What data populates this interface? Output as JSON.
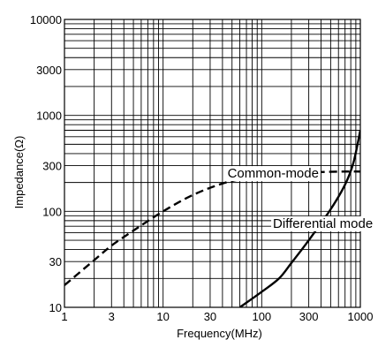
{
  "chart_data": {
    "type": "line",
    "xlabel": "Frequency(MHz)",
    "ylabel": "Impedance(Ω)",
    "xscale": "log",
    "yscale": "log",
    "xlim": [
      1,
      1000
    ],
    "ylim": [
      10,
      10000
    ],
    "grid": true,
    "x_ticks": [
      {
        "v": 1,
        "label": "1"
      },
      {
        "v": 3,
        "label": "3"
      },
      {
        "v": 10,
        "label": "10"
      },
      {
        "v": 30,
        "label": "30"
      },
      {
        "v": 100,
        "label": "100"
      },
      {
        "v": 300,
        "label": "300"
      },
      {
        "v": 1000,
        "label": "1000"
      }
    ],
    "y_ticks": [
      {
        "v": 10,
        "label": "10"
      },
      {
        "v": 30,
        "label": "30"
      },
      {
        "v": 100,
        "label": "100"
      },
      {
        "v": 300,
        "label": "300"
      },
      {
        "v": 1000,
        "label": "1000"
      },
      {
        "v": 3000,
        "label": "3000"
      },
      {
        "v": 10000,
        "label": "10000"
      }
    ],
    "series": [
      {
        "name": "Common-mode",
        "style": "dashed",
        "x": [
          1,
          2,
          3,
          5,
          10,
          20,
          40,
          70,
          100,
          200,
          400,
          700,
          1000
        ],
        "y": [
          17,
          31,
          44,
          63,
          100,
          148,
          195,
          222,
          235,
          250,
          257,
          260,
          260
        ]
      },
      {
        "name": "Differential mode",
        "style": "solid",
        "x": [
          60,
          100,
          150,
          200,
          300,
          500,
          700,
          850,
          1000
        ],
        "y": [
          10,
          14.5,
          20,
          29,
          50,
          105,
          190,
          320,
          700
        ]
      }
    ],
    "annotations": [
      {
        "text": "Common-mode",
        "x": 45,
        "y": 250
      },
      {
        "text": "Differential mode",
        "x": 130,
        "y": 75
      }
    ]
  }
}
